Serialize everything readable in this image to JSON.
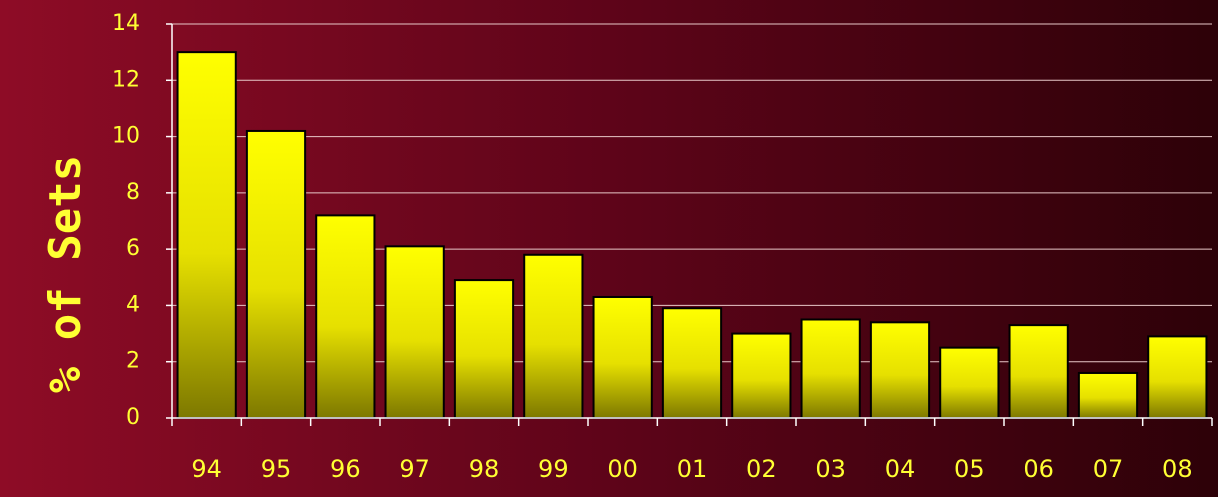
{
  "chart_data": {
    "type": "bar",
    "title": "",
    "xlabel": "",
    "ylabel": "% of Sets",
    "categories": [
      "94",
      "95",
      "96",
      "97",
      "98",
      "99",
      "00",
      "01",
      "02",
      "03",
      "04",
      "05",
      "06",
      "07",
      "08"
    ],
    "values": [
      13.0,
      10.2,
      7.2,
      6.1,
      4.9,
      5.8,
      4.3,
      3.9,
      3.0,
      3.5,
      3.4,
      2.5,
      3.3,
      1.6,
      2.9
    ],
    "ylim": [
      0,
      14
    ],
    "yticks": [
      0,
      2,
      4,
      6,
      8,
      10,
      12,
      14
    ],
    "grid": true,
    "legend": "none"
  },
  "colors": {
    "bar_top": "#ffff00",
    "bar_bottom": "#858000",
    "text": "#ffff33",
    "axis": "#ffffff",
    "grid": "#e8c8c8"
  }
}
